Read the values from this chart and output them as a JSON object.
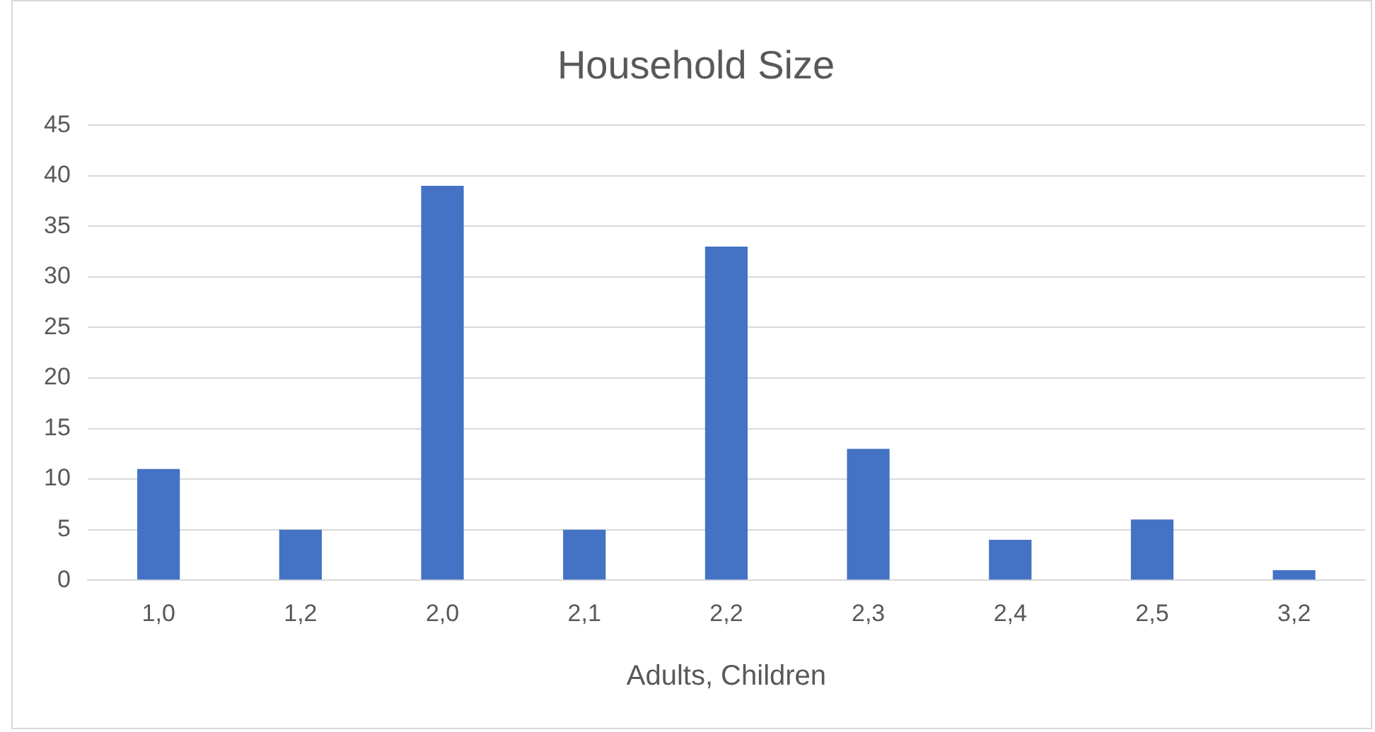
{
  "chart_data": {
    "type": "bar",
    "title": "Household Size",
    "xlabel": "Adults, Children",
    "categories": [
      "1,0",
      "1,2",
      "2,0",
      "2,1",
      "2,2",
      "2,3",
      "2,4",
      "2,5",
      "3,2"
    ],
    "values": [
      11,
      5,
      39,
      5,
      33,
      13,
      4,
      6,
      1
    ],
    "color": "#4472c4",
    "ylim": [
      0,
      45
    ],
    "yticks": [
      0,
      5,
      10,
      15,
      20,
      25,
      30,
      35,
      40,
      45
    ],
    "grid": "y",
    "legend": false
  }
}
